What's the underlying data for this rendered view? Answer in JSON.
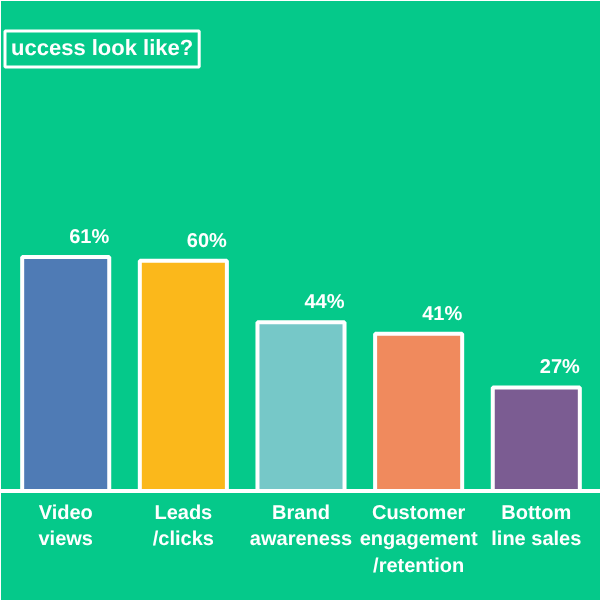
{
  "chart_data": {
    "type": "bar",
    "title": "uccess look like?",
    "categories": [
      "Video\nviews",
      "Leads\n/clicks",
      "Brand\nawareness",
      "Customer\nengagement\n/retention",
      "Bottom\nline sales"
    ],
    "values": [
      61,
      60,
      44,
      41,
      27
    ],
    "colors": [
      "#4f7bb5",
      "#fbb81b",
      "#76c8c8",
      "#f08a5d",
      "#7b5c92"
    ],
    "value_labels": [
      "61%",
      "60%",
      "44%",
      "41%",
      "27%"
    ]
  }
}
